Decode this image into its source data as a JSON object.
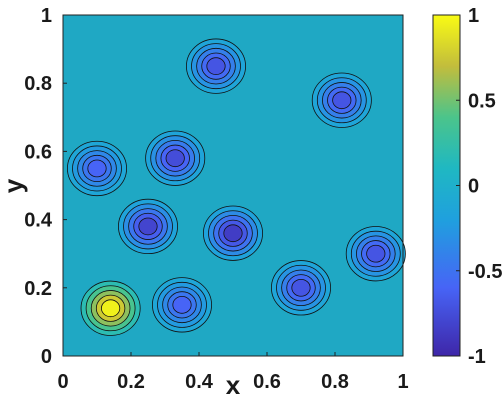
{
  "chart_data": {
    "type": "heatmap",
    "subtype": "filled-contour",
    "title": "",
    "xlabel": "x",
    "ylabel": "y",
    "xlim": [
      0,
      1
    ],
    "ylim": [
      0,
      1
    ],
    "x_ticks": [
      "0",
      "0.2",
      "0.4",
      "0.6",
      "0.8",
      "1"
    ],
    "y_ticks": [
      "0",
      "0.2",
      "0.4",
      "0.6",
      "0.8",
      "1"
    ],
    "x_tick_values": [
      0,
      0.2,
      0.4,
      0.6,
      0.8,
      1
    ],
    "y_tick_values": [
      0,
      0.2,
      0.4,
      0.6,
      0.8,
      1
    ],
    "colorbar": {
      "range": [
        -1,
        1
      ],
      "ticks": [
        "1",
        "0.5",
        "0",
        "-0.5",
        "-1"
      ],
      "tick_values": [
        1,
        0.5,
        0,
        -0.5,
        -1
      ],
      "colormap": "parula"
    },
    "contour_lines": true,
    "features": [
      {
        "x": 0.14,
        "y": 0.14,
        "value": 0.95,
        "note": "yellow peak"
      },
      {
        "x": 0.25,
        "y": 0.38,
        "value": -0.8
      },
      {
        "x": 0.33,
        "y": 0.58,
        "value": -0.75
      },
      {
        "x": 0.5,
        "y": 0.36,
        "value": -0.85
      },
      {
        "x": 0.45,
        "y": 0.85,
        "value": -0.7
      },
      {
        "x": 0.82,
        "y": 0.75,
        "value": -0.7
      },
      {
        "x": 0.92,
        "y": 0.3,
        "value": -0.7
      },
      {
        "x": 0.1,
        "y": 0.55,
        "value": -0.6
      },
      {
        "x": 0.7,
        "y": 0.2,
        "value": -0.7
      },
      {
        "x": 0.35,
        "y": 0.15,
        "value": -0.6
      }
    ]
  }
}
